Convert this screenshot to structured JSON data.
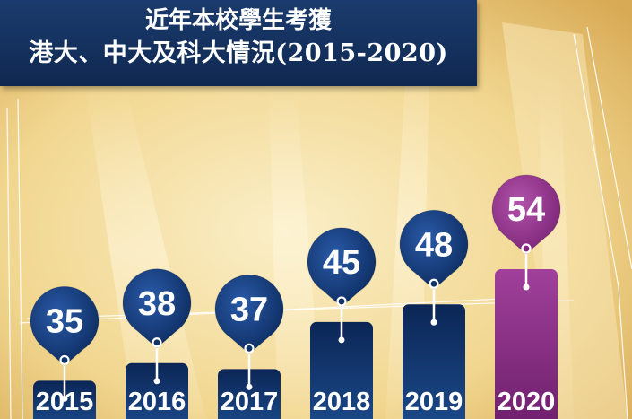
{
  "title": {
    "line1": "近年本校學生考獲",
    "line2": "港大、中大及科大情況(2015-2020)"
  },
  "colors": {
    "bar_navy": "#0f2f63",
    "bar_highlight": "#8c2a86",
    "background": "#f3e3b4"
  },
  "chart_data": {
    "type": "bar",
    "title": "近年本校學生考獲港大、中大及科大情況(2015-2020)",
    "categories": [
      "2015",
      "2016",
      "2017",
      "2018",
      "2019",
      "2020"
    ],
    "values": [
      35,
      38,
      37,
      45,
      48,
      54
    ],
    "highlight": "2020",
    "xlabel": "",
    "ylabel": "",
    "grid": false,
    "legend": "none"
  }
}
